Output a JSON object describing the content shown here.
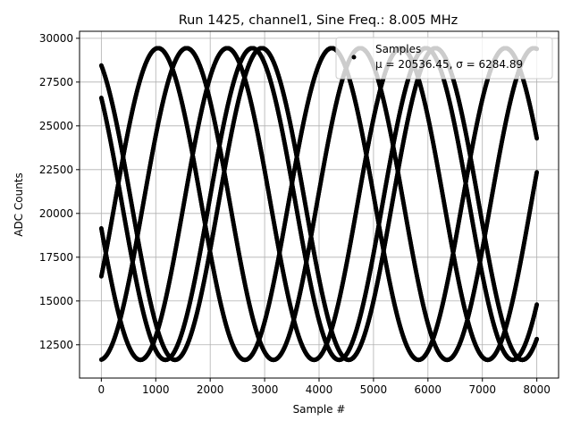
{
  "chart_data": {
    "type": "scatter",
    "title": "Run 1425, channel1, Sine Freq.: 8.005 MHz",
    "xlabel": "Sample #",
    "ylabel": "ADC Counts",
    "xlim": [
      -400,
      8400
    ],
    "ylim": [
      10600,
      30400
    ],
    "xticks": [
      0,
      1000,
      2000,
      3000,
      4000,
      5000,
      6000,
      7000,
      8000
    ],
    "yticks": [
      12500,
      15000,
      17500,
      20000,
      22500,
      25000,
      27500,
      30000
    ],
    "grid": true,
    "legend_position": "top-right",
    "legend": {
      "title": "Samples",
      "stats": "μ = 20536.45, σ = 6284.89"
    },
    "series": [
      {
        "name": "Samples",
        "marker": "point",
        "color": "#000000",
        "x_range": [
          0,
          8000
        ],
        "model": {
          "offset": 20536.45,
          "amplitude": 8900,
          "period": 3190,
          "phase_points_y_at_x0": [
            26600,
            28450,
            16400,
            19150,
            11650
          ]
        }
      }
    ]
  }
}
